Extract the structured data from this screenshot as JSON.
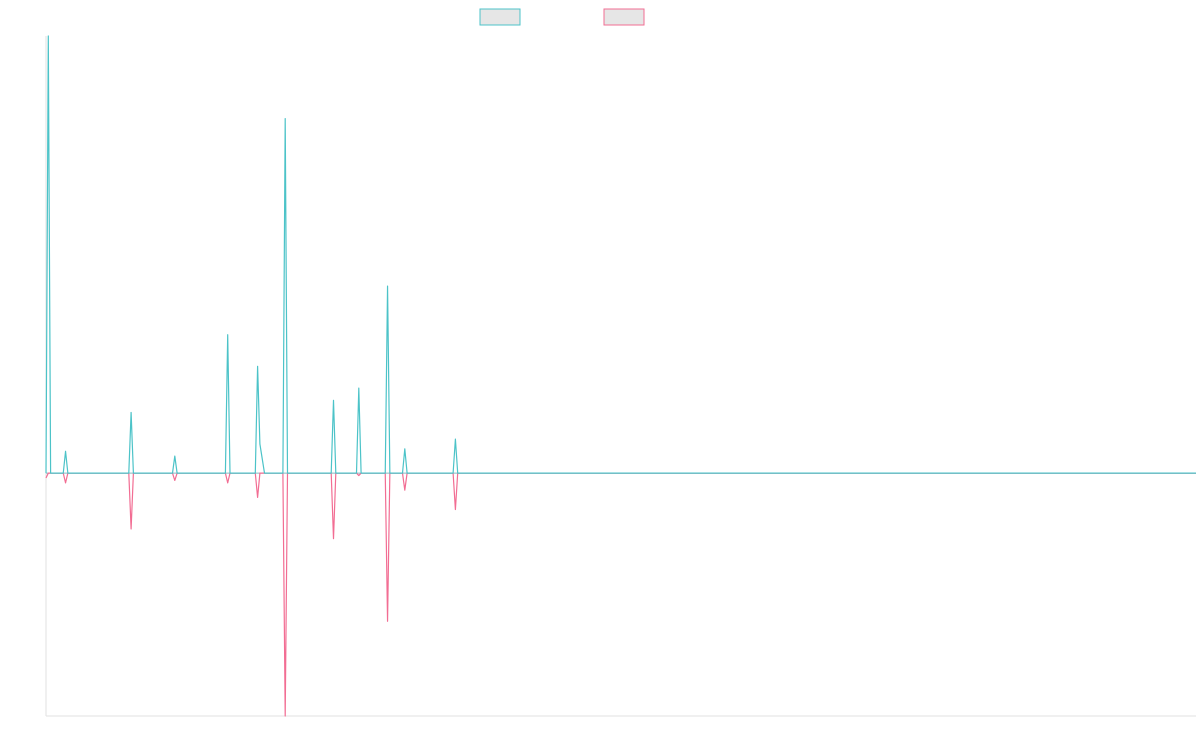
{
  "colors": {
    "series_a": "#4cc3c8",
    "series_b": "#f26d93",
    "legend_fill": "#e6e6e6",
    "axis": "#e2e2e2",
    "background": "#ffffff"
  },
  "chart_data": {
    "type": "line",
    "title": "",
    "xlabel": "",
    "ylabel": "",
    "grid": false,
    "legend": "top-center",
    "x_range": [
      0,
      100
    ],
    "ylim": [
      -100,
      180
    ],
    "series": [
      {
        "color": "#4cc3c8",
        "x": [
          0,
          0.2,
          0.4,
          1.5,
          1.7,
          1.9,
          7.2,
          7.4,
          7.6,
          11.0,
          11.2,
          11.4,
          15.6,
          15.8,
          16.0,
          18.2,
          18.4,
          18.6,
          19.0,
          20.6,
          20.8,
          21.0,
          24.8,
          25.0,
          25.2,
          27.0,
          27.2,
          27.4,
          29.5,
          29.7,
          29.9,
          31.0,
          31.2,
          31.4,
          35.4,
          35.6,
          35.8,
          40.0,
          40.2,
          40.4,
          100
        ],
        "values": [
          0,
          180,
          0,
          0,
          9,
          0,
          0,
          25,
          0,
          0,
          7,
          0,
          0,
          57,
          0,
          0,
          44,
          12,
          0,
          0,
          146,
          0,
          0,
          30,
          0,
          0,
          35,
          0,
          0,
          77,
          0,
          0,
          10,
          0,
          0,
          14,
          0,
          0,
          0,
          0,
          0
        ]
      },
      {
        "color": "#f26d93",
        "x": [
          0,
          0.2,
          0.4,
          1.5,
          1.7,
          1.9,
          7.2,
          7.4,
          7.6,
          11.0,
          11.2,
          11.4,
          15.6,
          15.8,
          16.0,
          18.2,
          18.4,
          18.6,
          19.0,
          20.6,
          20.8,
          21.0,
          24.8,
          25.0,
          25.2,
          27.0,
          27.2,
          27.4,
          29.5,
          29.7,
          29.9,
          31.0,
          31.2,
          31.4,
          35.4,
          35.6,
          35.8,
          40.0,
          40.2,
          40.4,
          100
        ],
        "values": [
          -2,
          0,
          0,
          0,
          -4,
          0,
          0,
          -23,
          0,
          0,
          -3,
          0,
          0,
          -4,
          0,
          0,
          -10,
          0,
          0,
          0,
          -100,
          0,
          0,
          -27,
          0,
          0,
          -1,
          0,
          0,
          -61,
          0,
          0,
          -7,
          0,
          0,
          -15,
          0,
          0,
          0,
          0,
          0
        ]
      }
    ]
  }
}
